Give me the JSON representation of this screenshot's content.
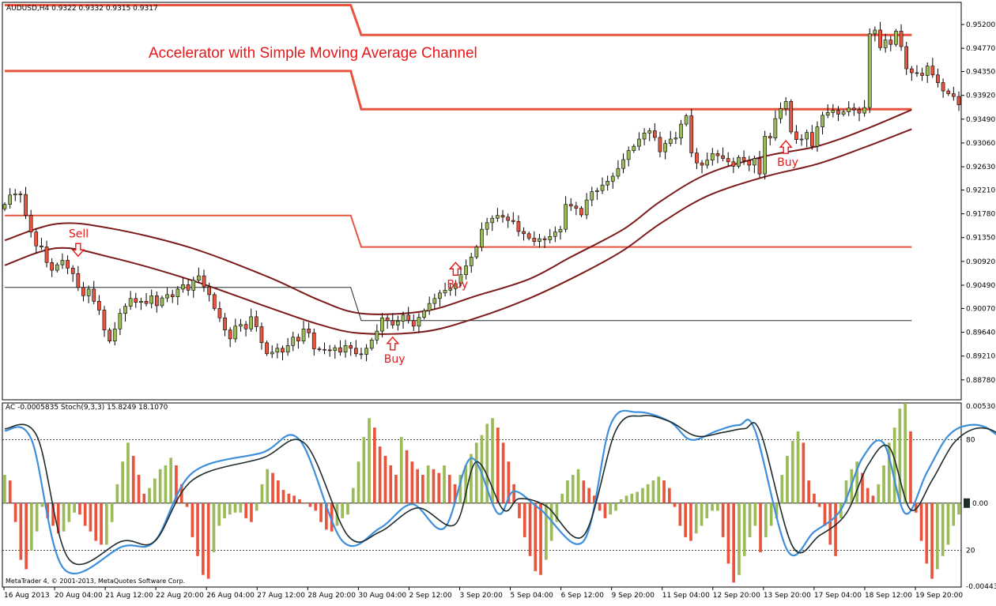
{
  "window": {
    "symbol_header": "AUDUSD,H4 0.9322 0.9332 0.9315 0.9317",
    "copyright": "MetaTrader 4, © 2001-2013, MetaQuotes Software Corp."
  },
  "chart_data": [
    {
      "type": "candlestick",
      "title": "Accelerator with Simple Moving Average Channel",
      "symbol": "AUDUSD",
      "timeframe": "H4",
      "ylim": [
        0.8842,
        0.956
      ],
      "y_ticks": [
        "0.95200",
        "0.94770",
        "0.94350",
        "0.93920",
        "0.93490",
        "0.93060",
        "0.92630",
        "0.92210",
        "0.91780",
        "0.91350",
        "0.90920",
        "0.90490",
        "0.90070",
        "0.89640",
        "0.89210",
        "0.88780"
      ],
      "x_ticks": [
        "16 Aug 2013",
        "20 Aug 04:00",
        "21 Aug 12:00",
        "22 Aug 20:00",
        "26 Aug 04:00",
        "27 Aug 12:00",
        "28 Aug 20:00",
        "30 Aug 04:00",
        "2 Sep 12:00",
        "3 Sep 20:00",
        "5 Sep 04:00",
        "6 Sep 12:00",
        "9 Sep 20:00",
        "11 Sep 04:00",
        "12 Sep 20:00",
        "13 Sep 20:00",
        "17 Sep 04:00",
        "18 Sep 12:00",
        "19 Sep 20:00"
      ],
      "bullish_color": "#9bbb59",
      "bearish_color": "#e8553e",
      "close_series": [
        0.9195,
        0.9212,
        0.9214,
        0.9213,
        0.9175,
        0.9145,
        0.912,
        0.9118,
        0.909,
        0.9076,
        0.9086,
        0.9094,
        0.908,
        0.907,
        0.9045,
        0.903,
        0.9042,
        0.902,
        0.9004,
        0.8968,
        0.8948,
        0.897,
        0.8998,
        0.9011,
        0.9025,
        0.9018,
        0.902,
        0.9016,
        0.903,
        0.9012,
        0.9026,
        0.9032,
        0.9028,
        0.9042,
        0.905,
        0.904,
        0.9058,
        0.9066,
        0.9046,
        0.9032,
        0.9007,
        0.899,
        0.8968,
        0.8952,
        0.8975,
        0.8978,
        0.897,
        0.8992,
        0.8974,
        0.8945,
        0.8925,
        0.8928,
        0.8935,
        0.8928,
        0.894,
        0.8955,
        0.8948,
        0.897,
        0.8963,
        0.8934,
        0.8933,
        0.8932,
        0.8931,
        0.8936,
        0.8928,
        0.894,
        0.8935,
        0.8925,
        0.8924,
        0.8935,
        0.895,
        0.8966,
        0.899,
        0.8985,
        0.8977,
        0.8984,
        0.8995,
        0.8985,
        0.8975,
        0.8991,
        0.9003,
        0.9016,
        0.9025,
        0.9035,
        0.904,
        0.9043,
        0.9052,
        0.9068,
        0.9084,
        0.91,
        0.9118,
        0.915,
        0.9162,
        0.917,
        0.9175,
        0.9172,
        0.9166,
        0.9164,
        0.9146,
        0.9142,
        0.9134,
        0.9128,
        0.9133,
        0.9131,
        0.9137,
        0.9145,
        0.915,
        0.9195,
        0.9192,
        0.9188,
        0.9176,
        0.9203,
        0.9218,
        0.922,
        0.923,
        0.9237,
        0.9246,
        0.926,
        0.9276,
        0.9292,
        0.93,
        0.9313,
        0.9324,
        0.9328,
        0.9316,
        0.929,
        0.9305,
        0.9313,
        0.9315,
        0.934,
        0.9355,
        0.9288,
        0.927,
        0.9266,
        0.9275,
        0.9287,
        0.9283,
        0.9278,
        0.9272,
        0.9264,
        0.928,
        0.9274,
        0.9266,
        0.9278,
        0.925,
        0.9318,
        0.9315,
        0.935,
        0.9368,
        0.9381,
        0.9326,
        0.9312,
        0.9313,
        0.9325,
        0.93,
        0.9335,
        0.9356,
        0.9361,
        0.9365,
        0.9358,
        0.9362,
        0.9369,
        0.9366,
        0.936,
        0.937,
        0.9503,
        0.951,
        0.9478,
        0.9492,
        0.9484,
        0.9508,
        0.948,
        0.944,
        0.9433,
        0.9432,
        0.9428,
        0.9445,
        0.9429,
        0.9415,
        0.94,
        0.9395,
        0.939,
        0.9375
      ],
      "channel_lines": {
        "color": "#e8553e",
        "upper_outer": [
          {
            "x_index": 0,
            "value": 0.9555
          },
          {
            "x_index": 66,
            "value": 0.9555
          },
          {
            "x_index": 68,
            "value": 0.9501
          },
          {
            "x_index": 173,
            "value": 0.9501
          }
        ],
        "upper_inner": [
          {
            "x_index": 0,
            "value": 0.9436
          },
          {
            "x_index": 66,
            "value": 0.9436
          },
          {
            "x_index": 68,
            "value": 0.9367
          },
          {
            "x_index": 173,
            "value": 0.9367
          }
        ],
        "lower_line": [
          {
            "x_index": 0,
            "value": 0.9175
          },
          {
            "x_index": 66,
            "value": 0.9175
          },
          {
            "x_index": 68,
            "value": 0.9118
          },
          {
            "x_index": 173,
            "value": 0.9118
          }
        ],
        "thin_line": [
          {
            "x_index": 0,
            "value": 0.9045
          },
          {
            "x_index": 66,
            "value": 0.9045
          },
          {
            "x_index": 68,
            "value": 0.8985
          },
          {
            "x_index": 173,
            "value": 0.8985
          }
        ]
      },
      "moving_averages": {
        "color": "#7b1a1a",
        "upper": [
          {
            "x_index": 0,
            "value": 0.913
          },
          {
            "x_index": 10,
            "value": 0.916
          },
          {
            "x_index": 20,
            "value": 0.9152
          },
          {
            "x_index": 35,
            "value": 0.9118
          },
          {
            "x_index": 50,
            "value": 0.9065
          },
          {
            "x_index": 60,
            "value": 0.9022
          },
          {
            "x_index": 68,
            "value": 0.8998
          },
          {
            "x_index": 80,
            "value": 0.9002
          },
          {
            "x_index": 90,
            "value": 0.903
          },
          {
            "x_index": 100,
            "value": 0.906
          },
          {
            "x_index": 108,
            "value": 0.91
          },
          {
            "x_index": 118,
            "value": 0.915
          },
          {
            "x_index": 125,
            "value": 0.92
          },
          {
            "x_index": 134,
            "value": 0.925
          },
          {
            "x_index": 145,
            "value": 0.9282
          },
          {
            "x_index": 155,
            "value": 0.93
          },
          {
            "x_index": 164,
            "value": 0.933
          },
          {
            "x_index": 173,
            "value": 0.9366
          }
        ],
        "lower": [
          {
            "x_index": 0,
            "value": 0.9085
          },
          {
            "x_index": 10,
            "value": 0.9116
          },
          {
            "x_index": 20,
            "value": 0.91
          },
          {
            "x_index": 35,
            "value": 0.906
          },
          {
            "x_index": 50,
            "value": 0.901
          },
          {
            "x_index": 60,
            "value": 0.8978
          },
          {
            "x_index": 68,
            "value": 0.8962
          },
          {
            "x_index": 80,
            "value": 0.8965
          },
          {
            "x_index": 90,
            "value": 0.899
          },
          {
            "x_index": 100,
            "value": 0.9025
          },
          {
            "x_index": 110,
            "value": 0.907
          },
          {
            "x_index": 118,
            "value": 0.9112
          },
          {
            "x_index": 125,
            "value": 0.916
          },
          {
            "x_index": 134,
            "value": 0.921
          },
          {
            "x_index": 145,
            "value": 0.9245
          },
          {
            "x_index": 155,
            "value": 0.9268
          },
          {
            "x_index": 164,
            "value": 0.9298
          },
          {
            "x_index": 173,
            "value": 0.9331
          }
        ]
      },
      "annotations": [
        {
          "text": "Sell",
          "arrow": "down",
          "x_index": 14,
          "value": 0.911
        },
        {
          "text": "Buy",
          "arrow": "up",
          "x_index": 74,
          "value": 0.8955
        },
        {
          "text": "Buy",
          "arrow": "up",
          "x_index": 86,
          "value": 0.909
        },
        {
          "text": "Buy",
          "arrow": "up",
          "x_index": 149,
          "value": 0.931
        }
      ]
    },
    {
      "type": "bar+line",
      "label": "AC -0.0005835 Stoch(9,3,3) 15.8249 18.1070",
      "ac": {
        "name": "AC",
        "ylim": [
          -0.0044387,
          0.0053024
        ],
        "y_ticks": [
          "0.0053024",
          "-0.0044387"
        ],
        "zero_label": "0.00",
        "up_color": "#9bbb59",
        "down_color": "#e8553e",
        "values": [
          0.0015,
          0.0012,
          -0.001,
          -0.003,
          -0.0035,
          -0.0025,
          -0.0015,
          -0.0002,
          -0.0008,
          -0.0012,
          -0.0016,
          -0.0015,
          -0.001,
          -0.0005,
          -0.0006,
          -0.0012,
          -0.0015,
          -0.002,
          -0.0022,
          -0.0022,
          -0.001,
          0.001,
          0.0022,
          0.0032,
          0.0025,
          0.0015,
          0.0005,
          0.0008,
          0.0013,
          0.0018,
          0.002,
          0.0024,
          0.002,
          0.001,
          -0.0002,
          -0.0018,
          -0.0028,
          -0.0038,
          -0.004,
          -0.0026,
          -0.0012,
          -0.0008,
          -0.0006,
          -0.0005,
          -0.0005,
          -0.0008,
          -0.001,
          -0.0004,
          0.001,
          0.0018,
          0.0016,
          0.0012,
          0.0007,
          0.0005,
          0.0004,
          0.0002,
          0.0,
          -0.0002,
          -0.0004,
          -0.001,
          -0.0014,
          -0.0015,
          -0.0012,
          -0.0008,
          -0.0006,
          0.0008,
          0.0022,
          0.0035,
          0.0045,
          0.004,
          0.003,
          0.0025,
          0.002,
          0.0015,
          0.0035,
          0.0028,
          0.0022,
          0.0018,
          0.0015,
          0.002,
          0.0018,
          0.0016,
          0.002,
          0.0015,
          0.001,
          0.0015,
          0.002,
          0.0026,
          0.0032,
          0.0036,
          0.0042,
          0.0045,
          0.004,
          0.0032,
          0.0022,
          0.001,
          -0.0008,
          -0.0018,
          -0.0028,
          -0.0036,
          -0.0038,
          -0.003,
          -0.002,
          -0.001,
          0.0005,
          0.0012,
          0.0015,
          0.0018,
          0.0012,
          0.0008,
          0.0004,
          -0.0004,
          -0.0008,
          -0.0006,
          -0.0004,
          0.0002,
          0.0004,
          0.0005,
          0.0006,
          0.0008,
          0.001,
          0.0012,
          0.0014,
          0.0012,
          0.0008,
          -0.0002,
          -0.0012,
          -0.0018,
          -0.002,
          -0.0016,
          -0.0012,
          -0.0008,
          -0.0004,
          -0.0004,
          -0.0018,
          -0.0032,
          -0.0042,
          -0.0038,
          -0.0028,
          -0.0018,
          -0.0012,
          -0.0026,
          -0.0018,
          -0.0012,
          -0.0008,
          0.0015,
          0.0025,
          0.0033,
          0.0038,
          0.0032,
          0.0012,
          0.0005,
          -0.0002,
          -0.0012,
          -0.0022,
          -0.0028,
          -0.0008,
          0.0012,
          0.0018,
          0.0022,
          0.0016,
          0.0008,
          0.0004,
          0.001,
          0.002,
          0.0032,
          0.004,
          0.005,
          0.0053,
          0.0038,
          -0.0005,
          -0.002,
          -0.0032,
          -0.004,
          -0.0035,
          -0.0028,
          -0.0022,
          -0.0012,
          -0.0006
        ]
      },
      "stochastic": {
        "name": "Stoch(9,3,3)",
        "ylim": [
          0,
          100
        ],
        "levels": [
          20,
          80
        ],
        "main_color": "#3d8fdc",
        "signal_color": "#1e2b2b",
        "main_points": [
          {
            "x_index": 0,
            "value": 85
          },
          {
            "x_index": 5,
            "value": 80
          },
          {
            "x_index": 11,
            "value": 10
          },
          {
            "x_index": 22,
            "value": 22
          },
          {
            "x_index": 28,
            "value": 25
          },
          {
            "x_index": 35,
            "value": 62
          },
          {
            "x_index": 48,
            "value": 73
          },
          {
            "x_index": 55,
            "value": 80
          },
          {
            "x_index": 63,
            "value": 25
          },
          {
            "x_index": 70,
            "value": 32
          },
          {
            "x_index": 76,
            "value": 45
          },
          {
            "x_index": 82,
            "value": 32
          },
          {
            "x_index": 87,
            "value": 70
          },
          {
            "x_index": 92,
            "value": 40
          },
          {
            "x_index": 95,
            "value": 52
          },
          {
            "x_index": 100,
            "value": 42
          },
          {
            "x_index": 108,
            "value": 25
          },
          {
            "x_index": 113,
            "value": 88
          },
          {
            "x_index": 118,
            "value": 95
          },
          {
            "x_index": 124,
            "value": 90
          },
          {
            "x_index": 128,
            "value": 80
          },
          {
            "x_index": 133,
            "value": 85
          },
          {
            "x_index": 137,
            "value": 88
          },
          {
            "x_index": 140,
            "value": 85
          },
          {
            "x_index": 146,
            "value": 20
          },
          {
            "x_index": 151,
            "value": 30
          },
          {
            "x_index": 156,
            "value": 42
          },
          {
            "x_index": 160,
            "value": 70
          },
          {
            "x_index": 164,
            "value": 78
          },
          {
            "x_index": 168,
            "value": 40
          },
          {
            "x_index": 172,
            "value": 62
          },
          {
            "x_index": 176,
            "value": 82
          },
          {
            "x_index": 180,
            "value": 88
          },
          {
            "x_index": 184,
            "value": 85
          },
          {
            "x_index": 188,
            "value": 70
          },
          {
            "x_index": 192,
            "value": 20
          },
          {
            "x_index": 196,
            "value": 15
          },
          {
            "x_index": 199,
            "value": 16
          }
        ],
        "signal_points": [
          {
            "x_index": 0,
            "value": 86
          },
          {
            "x_index": 6,
            "value": 82
          },
          {
            "x_index": 12,
            "value": 15
          },
          {
            "x_index": 22,
            "value": 25
          },
          {
            "x_index": 28,
            "value": 25
          },
          {
            "x_index": 35,
            "value": 58
          },
          {
            "x_index": 48,
            "value": 70
          },
          {
            "x_index": 56,
            "value": 78
          },
          {
            "x_index": 64,
            "value": 28
          },
          {
            "x_index": 70,
            "value": 30
          },
          {
            "x_index": 77,
            "value": 43
          },
          {
            "x_index": 84,
            "value": 34
          },
          {
            "x_index": 88,
            "value": 68
          },
          {
            "x_index": 93,
            "value": 42
          },
          {
            "x_index": 96,
            "value": 48
          },
          {
            "x_index": 101,
            "value": 44
          },
          {
            "x_index": 108,
            "value": 28
          },
          {
            "x_index": 114,
            "value": 85
          },
          {
            "x_index": 119,
            "value": 93
          },
          {
            "x_index": 124,
            "value": 90
          },
          {
            "x_index": 129,
            "value": 82
          },
          {
            "x_index": 134,
            "value": 84
          },
          {
            "x_index": 138,
            "value": 86
          },
          {
            "x_index": 141,
            "value": 84
          },
          {
            "x_index": 147,
            "value": 22
          },
          {
            "x_index": 152,
            "value": 28
          },
          {
            "x_index": 157,
            "value": 40
          },
          {
            "x_index": 161,
            "value": 66
          },
          {
            "x_index": 165,
            "value": 76
          },
          {
            "x_index": 169,
            "value": 42
          },
          {
            "x_index": 173,
            "value": 58
          },
          {
            "x_index": 177,
            "value": 78
          },
          {
            "x_index": 181,
            "value": 86
          },
          {
            "x_index": 185,
            "value": 84
          },
          {
            "x_index": 189,
            "value": 72
          },
          {
            "x_index": 193,
            "value": 25
          },
          {
            "x_index": 197,
            "value": 18
          },
          {
            "x_index": 199,
            "value": 18
          }
        ]
      }
    }
  ]
}
